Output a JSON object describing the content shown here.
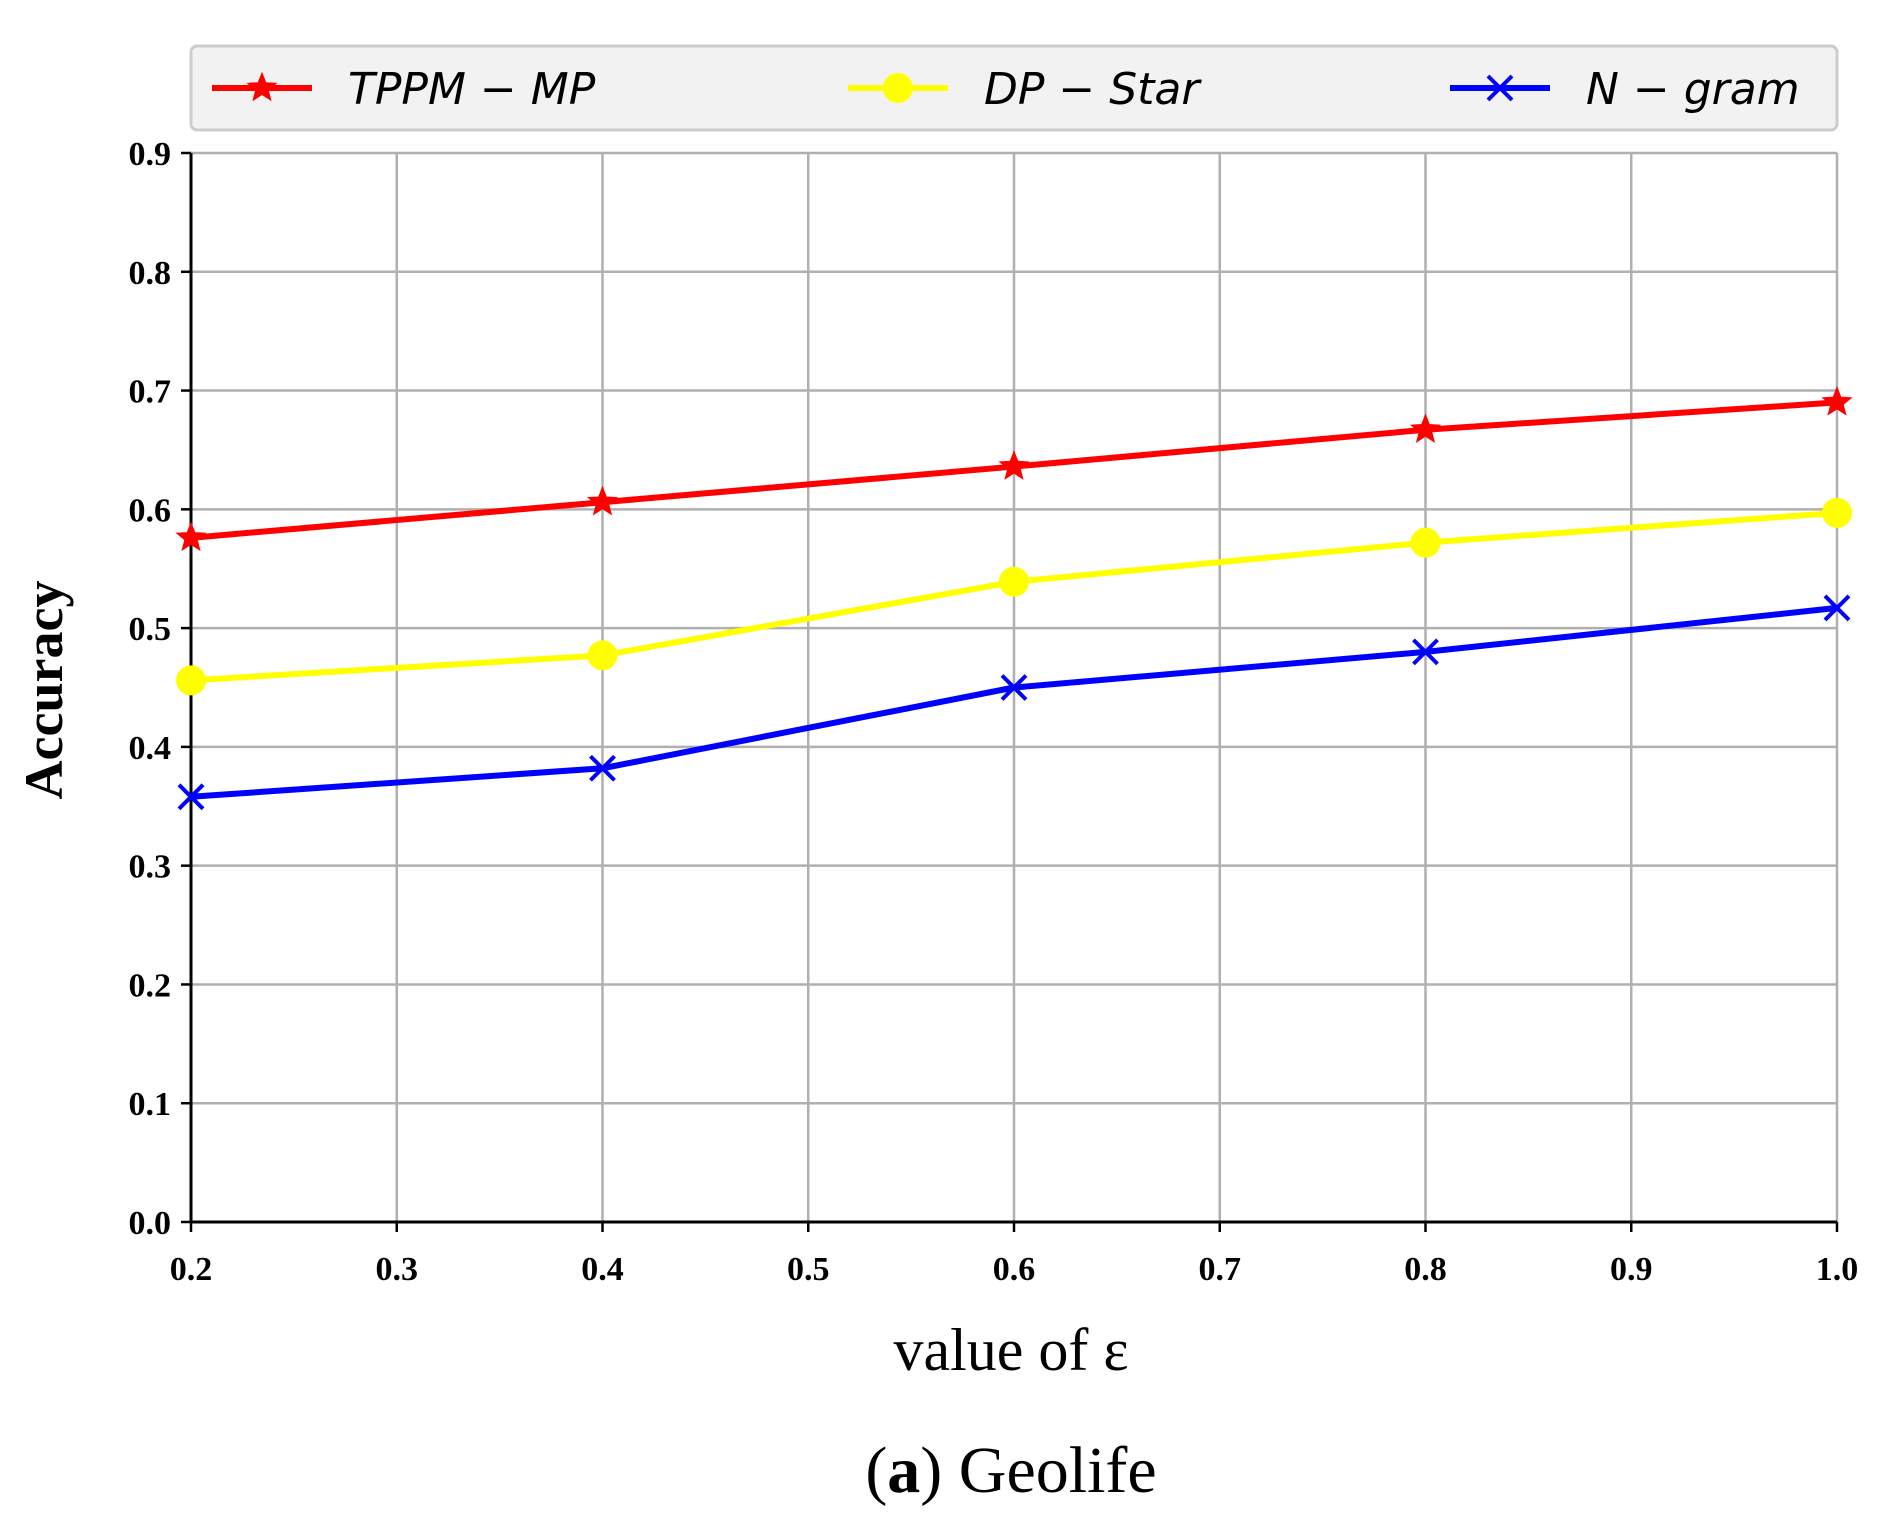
{
  "chart_data": {
    "type": "line",
    "x": [
      0.2,
      0.4,
      0.6,
      0.8,
      1.0
    ],
    "series": [
      {
        "name": "TPPM − MP",
        "color": "#ff0000",
        "marker": "star",
        "values": [
          0.576,
          0.606,
          0.636,
          0.667,
          0.69
        ]
      },
      {
        "name": "DP − Star",
        "color": "#ffff00",
        "marker": "circle",
        "values": [
          0.456,
          0.477,
          0.539,
          0.572,
          0.597
        ]
      },
      {
        "name": "N − gram",
        "color": "#0000ff",
        "marker": "x",
        "values": [
          0.358,
          0.382,
          0.45,
          0.48,
          0.517
        ]
      }
    ],
    "xlabel": "value of ε",
    "ylabel": "Accuracy",
    "xlim": [
      0.2,
      1.0
    ],
    "ylim": [
      0.0,
      0.9
    ],
    "xticks": [
      "0.2",
      "0.3",
      "0.4",
      "0.5",
      "0.6",
      "0.7",
      "0.8",
      "0.9",
      "1.0"
    ],
    "yticks": [
      "0.0",
      "0.1",
      "0.2",
      "0.3",
      "0.4",
      "0.5",
      "0.6",
      "0.7",
      "0.8",
      "0.9"
    ],
    "grid": true,
    "legend_position": "top",
    "caption": {
      "label": "a",
      "text": "Geolife"
    }
  }
}
